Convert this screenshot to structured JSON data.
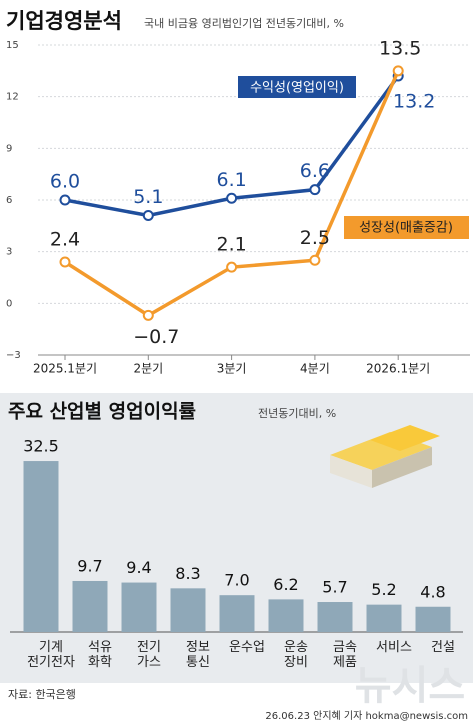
{
  "charts": [
    {
      "type": "line",
      "title": "기업경영분석",
      "subtitle": "국내 비금융 영리법인기업 전년동기대비, %",
      "categories": [
        "2025.1분기",
        "2분기",
        "3분기",
        "4분기",
        "2026.1분기"
      ],
      "ylim": [
        -3,
        15
      ],
      "yticks": [
        {
          "value": -3,
          "label": "−3"
        },
        0,
        3,
        6,
        9,
        12,
        15
      ],
      "grid": true,
      "series": [
        {
          "name": "수익성(영업이익)",
          "color": "#1f4e9c",
          "values": [
            6.0,
            5.1,
            6.1,
            6.6,
            13.2
          ],
          "value_labels": [
            "6.0",
            "5.1",
            "6.1",
            "6.6",
            "13.2"
          ]
        },
        {
          "name": "성장성(매출증감)",
          "color": "#f39a2c",
          "values": [
            2.4,
            -0.7,
            2.1,
            2.5,
            13.5
          ],
          "value_labels": [
            "2.4",
            "−0.7",
            "2.1",
            "2.5",
            "13.5"
          ]
        }
      ]
    },
    {
      "type": "bar",
      "title": "주요 산업별 영업이익률",
      "subtitle": "전년동기대비, %",
      "color": "#8fa8b8",
      "categories": [
        "기계\n전기전자",
        "석유\n화학",
        "전기\n가스",
        "정보\n통신",
        "운수업",
        "운송\n장비",
        "금속\n제품",
        "서비스",
        "건설"
      ],
      "values": [
        32.5,
        9.7,
        9.4,
        8.3,
        7.0,
        6.2,
        5.7,
        5.2,
        4.8
      ],
      "value_labels": [
        "32.5",
        "9.7",
        "9.4",
        "8.3",
        "7.0",
        "6.2",
        "5.7",
        "5.2",
        "4.8"
      ]
    }
  ],
  "source": "자료: 한국은행",
  "credit": "26.06.23 안지혜 기자 hokma@newsis.com",
  "watermark": "뉴시스"
}
